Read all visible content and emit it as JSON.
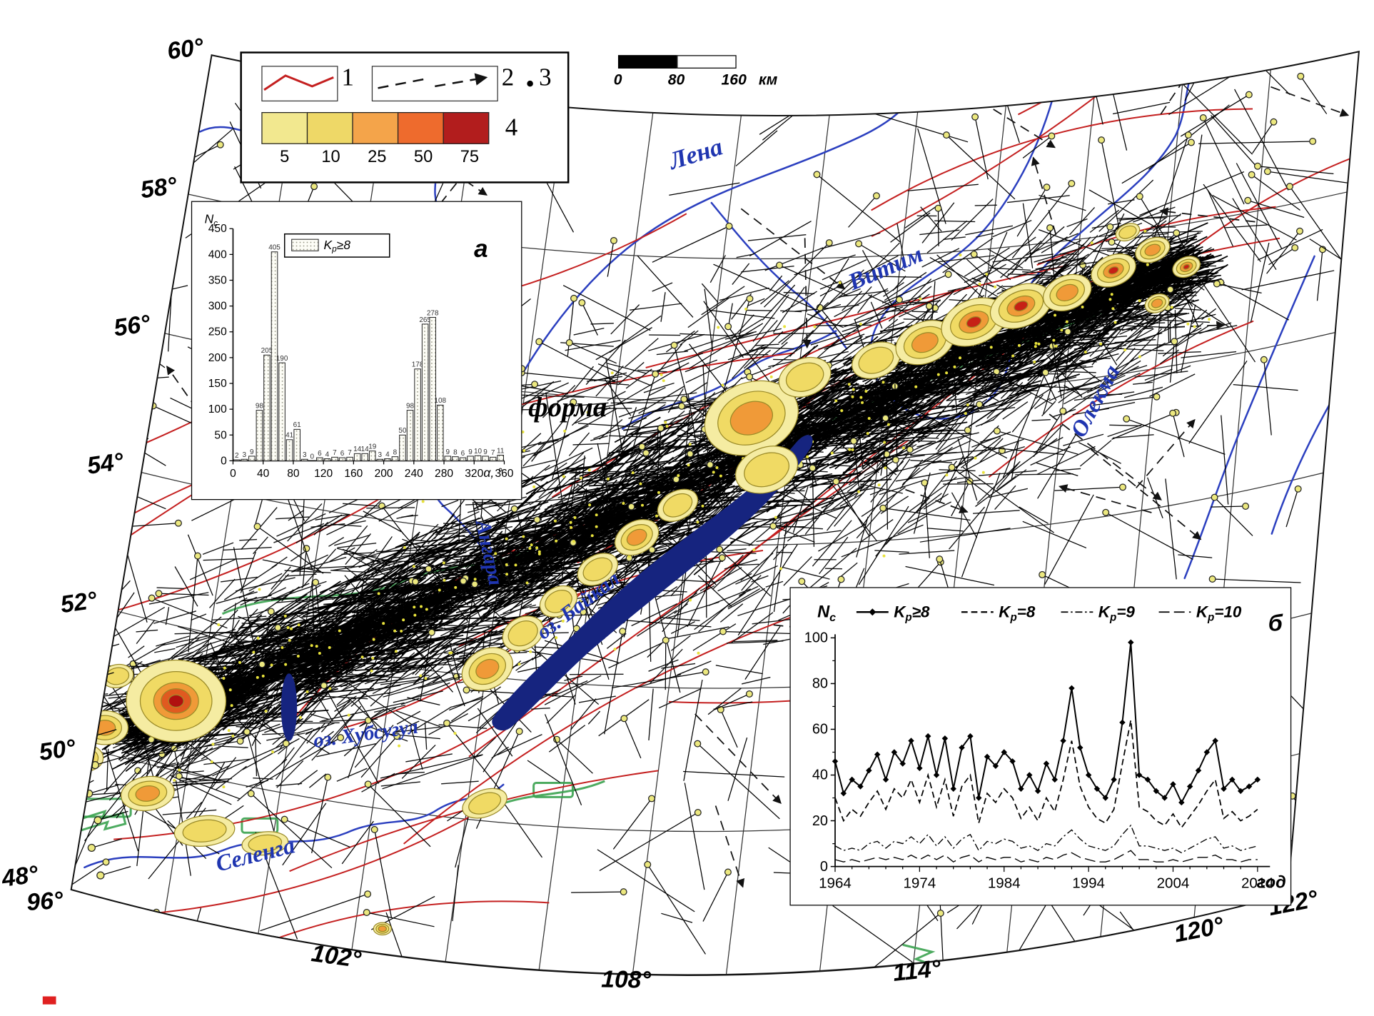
{
  "map": {
    "lat_labels": [
      "60°",
      "58°",
      "56°",
      "54°",
      "52°",
      "50°",
      "48°"
    ],
    "lon_labels": [
      "96°",
      "102°",
      "108°",
      "114°",
      "120°",
      "122°"
    ],
    "labels": {
      "lena": "Лена",
      "vitim": "Витим",
      "olekma": "Олекма",
      "angara": "Ангара",
      "selenga": "Селенга",
      "hovsgol": "оз. Хубсугул",
      "baikal": "оз. Байкал",
      "platform": "форма"
    }
  },
  "legend": {
    "item1": "1",
    "item2": "2",
    "item3": "3",
    "item4": "4",
    "scale_values": [
      "5",
      "10",
      "25",
      "50",
      "75"
    ],
    "scale_colors": [
      "#f2e88f",
      "#eed867",
      "#f4a44a",
      "#ee6b2d",
      "#b21d1d"
    ],
    "fault_color": "#c41f1f",
    "river_color": "#2b3fbf",
    "density_fill": "#f5eca2"
  },
  "scalebar": {
    "v0": "0",
    "v1": "80",
    "v2": "160",
    "unit": "км"
  },
  "chart_data": [
    {
      "type": "bar",
      "panel": "а",
      "xlabel": "α, °",
      "ylabel": "Nc",
      "legend": "Kp≥8",
      "x_start": 0,
      "bin_width_deg": 10,
      "xticks": [
        0,
        40,
        80,
        120,
        160,
        200,
        240,
        280,
        320,
        360
      ],
      "yticks": [
        0,
        50,
        100,
        150,
        200,
        250,
        300,
        350,
        400,
        450
      ],
      "ylim": [
        0,
        450
      ],
      "values": [
        2,
        3,
        9,
        98,
        205,
        405,
        190,
        41,
        61,
        3,
        0,
        6,
        4,
        7,
        6,
        7,
        14,
        14,
        19,
        3,
        4,
        8,
        50,
        98,
        178,
        265,
        278,
        108,
        9,
        8,
        6,
        9,
        10,
        9,
        7,
        11
      ]
    },
    {
      "type": "line",
      "panel": "б",
      "xlabel": "год",
      "ylabel": "Nc",
      "x_start": 1964,
      "x_end": 2014,
      "xticks": [
        1964,
        1974,
        1984,
        1994,
        2004,
        2014
      ],
      "yticks": [
        0,
        20,
        40,
        60,
        80,
        100
      ],
      "ylim": [
        0,
        100
      ],
      "series": [
        {
          "label": "Kp≥8",
          "style": "solid-diamond",
          "values": [
            46,
            32,
            38,
            35,
            42,
            49,
            38,
            50,
            45,
            55,
            43,
            57,
            40,
            56,
            34,
            52,
            57,
            30,
            48,
            44,
            50,
            46,
            34,
            40,
            33,
            45,
            38,
            55,
            78,
            52,
            40,
            34,
            30,
            38,
            63,
            98,
            40,
            38,
            33,
            30,
            36,
            28,
            35,
            42,
            50,
            55,
            34,
            38,
            33,
            35,
            38
          ]
        },
        {
          "label": "Kp=8",
          "style": "dashed",
          "values": [
            30,
            20,
            25,
            22,
            28,
            33,
            25,
            34,
            30,
            38,
            28,
            40,
            26,
            38,
            22,
            35,
            40,
            19,
            32,
            28,
            34,
            30,
            21,
            26,
            20,
            30,
            24,
            38,
            55,
            35,
            26,
            21,
            19,
            25,
            45,
            64,
            26,
            24,
            20,
            18,
            23,
            17,
            22,
            27,
            33,
            38,
            21,
            24,
            20,
            22,
            25
          ]
        },
        {
          "label": "Kp=9",
          "style": "dashdot",
          "values": [
            9,
            7,
            8,
            7,
            10,
            11,
            8,
            11,
            10,
            13,
            10,
            14,
            9,
            13,
            8,
            12,
            14,
            7,
            11,
            10,
            12,
            11,
            8,
            9,
            7,
            10,
            9,
            13,
            16,
            12,
            9,
            8,
            7,
            9,
            14,
            18,
            9,
            9,
            8,
            7,
            8,
            6,
            8,
            10,
            12,
            13,
            8,
            9,
            7,
            8,
            9
          ]
        },
        {
          "label": "Kp=10",
          "style": "longdash",
          "values": [
            3,
            2,
            3,
            2,
            3,
            4,
            3,
            4,
            3,
            5,
            3,
            5,
            3,
            5,
            2,
            4,
            5,
            2,
            4,
            3,
            4,
            4,
            2,
            3,
            2,
            4,
            3,
            5,
            6,
            4,
            3,
            2,
            2,
            3,
            5,
            7,
            3,
            3,
            2,
            2,
            3,
            2,
            3,
            4,
            4,
            5,
            3,
            3,
            2,
            3,
            3
          ]
        }
      ]
    }
  ]
}
